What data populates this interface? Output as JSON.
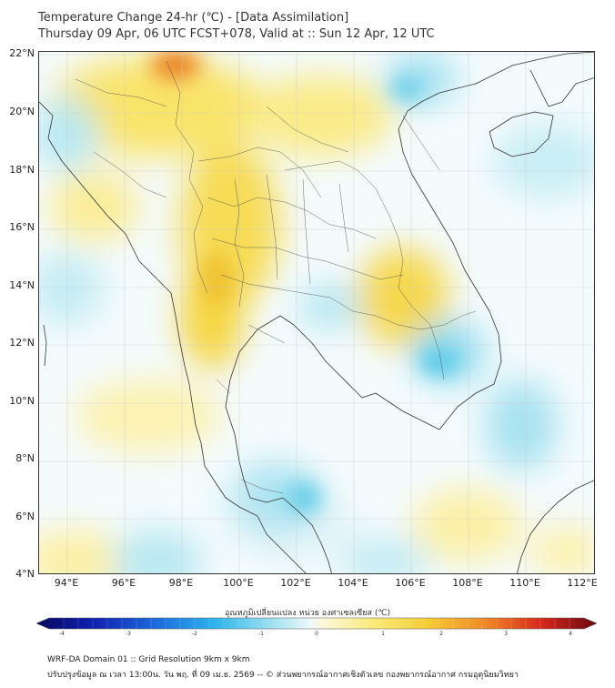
{
  "title": {
    "line1": "Temperature Change 24-hr (℃) - [Data Assimilation]",
    "line2": "Thursday 09 Apr, 06 UTC FCST+078, Valid at :: Sun 12 Apr, 12 UTC"
  },
  "map": {
    "lat_labels": [
      "22°N",
      "20°N",
      "18°N",
      "16°N",
      "14°N",
      "12°N",
      "10°N",
      "8°N",
      "6°N",
      "4°N"
    ],
    "lon_labels": [
      "94°E",
      "96°E",
      "98°E",
      "100°E",
      "102°E",
      "104°E",
      "106°E",
      "108°E",
      "110°E",
      "112°E"
    ],
    "lat_range": [
      4,
      22
    ],
    "lon_range": [
      93,
      112.5
    ]
  },
  "colorbar": {
    "title": "อุณหภูมิเปลี่ยนแปลง หน่วย องศาเซลเซียส (℃)",
    "ticks": [
      "-4",
      "-3",
      "-2",
      "-1",
      "0",
      "1",
      "2",
      "3",
      "4"
    ],
    "range": [
      -4,
      4
    ]
  },
  "footer": {
    "line1": "WRF-DA Domain 01 :: Grid Resolution 9km x 9km",
    "line2": "ปรับปรุงข้อมูล ณ เวลา 13:00น. วัน พฤ. ที่ 09 เม.ย. 2569 -- © ส่วนพยากรณ์อากาศเชิงตัวเลข กองพยากรณ์อากาศ กรมอุตุนิยมวิทยา"
  },
  "colors": {
    "warm": "#f7dc4a",
    "warm_strong": "#f0a830",
    "hot": "#e8642a",
    "cool": "#9fe0ef",
    "cool_strong": "#5ccbe8"
  }
}
